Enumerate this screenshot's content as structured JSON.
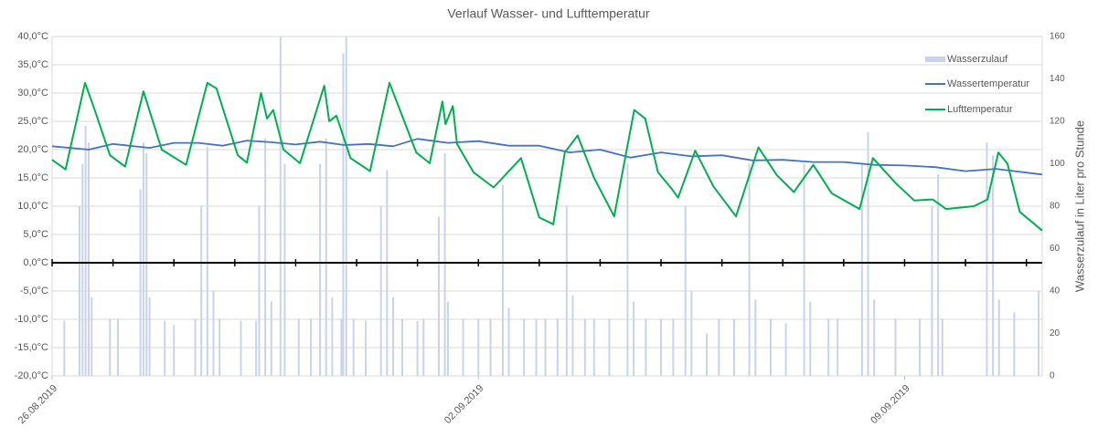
{
  "chart_data": {
    "type": "combo",
    "title": "Verlauf Wasser- und Lufttemperatur",
    "y2_label": "Wasserzulauf in Liter pro Stunde",
    "xlim": [
      0,
      16.26
    ],
    "xticks": [
      {
        "value": 0,
        "label": "26.08.2019"
      },
      {
        "value": 7,
        "label": "02.09.2019"
      },
      {
        "value": 14,
        "label": "09.09.2019"
      }
    ],
    "xminorticks": [
      0,
      1,
      2,
      3,
      4,
      5,
      6,
      7,
      8,
      9,
      10,
      11,
      12,
      13,
      14,
      15,
      16
    ],
    "ylim": [
      -20,
      40
    ],
    "yticks": [
      {
        "value": 40,
        "label": "40,0°C"
      },
      {
        "value": 35,
        "label": "35,0°C"
      },
      {
        "value": 30,
        "label": "30,0°C"
      },
      {
        "value": 25,
        "label": "25,0°C"
      },
      {
        "value": 20,
        "label": "20,0°C"
      },
      {
        "value": 15,
        "label": "15,0°C"
      },
      {
        "value": 10,
        "label": "10,0°C"
      },
      {
        "value": 5,
        "label": "5,0°C"
      },
      {
        "value": 0,
        "label": "0,0°C"
      },
      {
        "value": -5,
        "label": "-5,0°C"
      },
      {
        "value": -10,
        "label": "-10,0°C"
      },
      {
        "value": -15,
        "label": "-15,0°C"
      },
      {
        "value": -20,
        "label": "-20,0°C"
      }
    ],
    "y2lim": [
      0,
      160
    ],
    "y2ticks": [
      0,
      20,
      40,
      60,
      80,
      100,
      120,
      140,
      160
    ],
    "grid": true,
    "legend": "upper right",
    "series": [
      {
        "name": "Wasserzulauf",
        "kind": "bar",
        "axis": "y2",
        "color": "#c9d3ea",
        "x": [
          0.2,
          0.45,
          0.5,
          0.55,
          0.6,
          0.65,
          0.95,
          1.08,
          1.45,
          1.5,
          1.55,
          1.6,
          1.85,
          2.0,
          2.35,
          2.45,
          2.55,
          2.65,
          2.75,
          3.1,
          3.35,
          3.4,
          3.5,
          3.6,
          3.75,
          3.82,
          4.05,
          4.25,
          4.4,
          4.5,
          4.6,
          4.75,
          4.78,
          4.83,
          4.95,
          5.15,
          5.4,
          5.5,
          5.6,
          5.75,
          6.0,
          6.1,
          6.35,
          6.45,
          6.5,
          6.75,
          7.0,
          7.2,
          7.4,
          7.5,
          7.75,
          7.95,
          8.1,
          8.3,
          8.45,
          8.55,
          8.75,
          8.9,
          9.15,
          9.45,
          9.55,
          9.75,
          10.0,
          10.2,
          10.4,
          10.5,
          10.75,
          10.95,
          11.2,
          11.45,
          11.55,
          11.8,
          12.05,
          12.35,
          12.45,
          12.75,
          12.9,
          13.3,
          13.4,
          13.5,
          13.85,
          14.25,
          14.45,
          14.55,
          14.62,
          15.35,
          15.45,
          15.55,
          15.8,
          16.2
        ],
        "values": [
          26,
          80,
          100,
          118,
          110,
          37,
          27,
          27,
          88,
          110,
          105,
          37,
          26,
          24,
          27,
          80,
          108,
          40,
          27,
          26,
          26,
          80,
          112,
          35,
          160,
          100,
          27,
          27,
          100,
          112,
          37,
          27,
          152,
          160,
          27,
          26,
          80,
          97,
          37,
          27,
          26,
          27,
          75,
          105,
          35,
          27,
          27,
          27,
          90,
          32,
          27,
          27,
          27,
          27,
          80,
          38,
          27,
          27,
          27,
          100,
          35,
          27,
          27,
          27,
          80,
          40,
          20,
          27,
          27,
          100,
          36,
          27,
          25,
          100,
          35,
          27,
          27,
          100,
          115,
          36,
          27,
          27,
          80,
          95,
          27,
          110,
          104,
          36,
          30,
          40
        ]
      },
      {
        "name": "Wassertemperatur",
        "kind": "line",
        "color": "#4472c4",
        "x": [
          0,
          0.6,
          1.0,
          1.6,
          2.0,
          2.4,
          2.8,
          3.2,
          3.6,
          4.0,
          4.4,
          4.8,
          5.2,
          5.6,
          6.0,
          6.5,
          7.0,
          7.5,
          8.0,
          8.5,
          9.0,
          9.5,
          10.0,
          10.5,
          11.0,
          11.5,
          12.0,
          12.5,
          13.0,
          13.5,
          14.0,
          14.5,
          15.0,
          15.5,
          16.26
        ],
        "values": [
          20.6,
          20.0,
          21.0,
          20.3,
          21.2,
          21.2,
          20.7,
          21.6,
          21.3,
          20.9,
          21.4,
          20.8,
          21.0,
          20.6,
          21.9,
          21.2,
          21.5,
          20.7,
          20.7,
          19.5,
          20.0,
          18.6,
          19.5,
          18.8,
          19.0,
          18.1,
          18.2,
          17.8,
          17.8,
          17.3,
          17.2,
          16.9,
          16.2,
          16.6,
          15.6
        ]
      },
      {
        "name": "Lufttemperatur",
        "kind": "line",
        "color": "#00b050",
        "x": [
          0,
          0.22,
          0.54,
          0.7,
          0.95,
          1.2,
          1.5,
          1.8,
          2.2,
          2.55,
          2.7,
          3.05,
          3.2,
          3.43,
          3.53,
          3.63,
          3.8,
          4.07,
          4.47,
          4.55,
          4.67,
          4.9,
          5.22,
          5.54,
          5.98,
          6.2,
          6.41,
          6.46,
          6.58,
          6.65,
          6.92,
          7.25,
          7.7,
          8.0,
          8.23,
          8.42,
          8.63,
          8.9,
          9.23,
          9.56,
          9.74,
          9.95,
          10.18,
          10.28,
          10.56,
          10.86,
          11.23,
          11.6,
          11.9,
          12.18,
          12.5,
          12.8,
          13.26,
          13.48,
          13.86,
          14.16,
          14.46,
          14.68,
          15.14,
          15.36,
          15.54,
          15.69,
          15.89,
          16.26
        ],
        "values": [
          18.2,
          16.5,
          31.8,
          27,
          19,
          17,
          30.3,
          20,
          17.3,
          31.8,
          30.8,
          19,
          17.7,
          30,
          25.5,
          27,
          20,
          17.6,
          31.3,
          25,
          26,
          18.5,
          16.2,
          31.8,
          19.5,
          17.6,
          28.5,
          24.5,
          27.7,
          21,
          16,
          13.3,
          18.5,
          8,
          6.8,
          19.5,
          22.5,
          15,
          8.2,
          27,
          25.5,
          16,
          13,
          11.5,
          19.8,
          13.5,
          8.2,
          20.4,
          15.5,
          12.5,
          17.3,
          12.3,
          9.5,
          18.5,
          14,
          11,
          11.2,
          9.5,
          10,
          11.2,
          19.5,
          17.5,
          9,
          5.7
        ]
      }
    ]
  }
}
